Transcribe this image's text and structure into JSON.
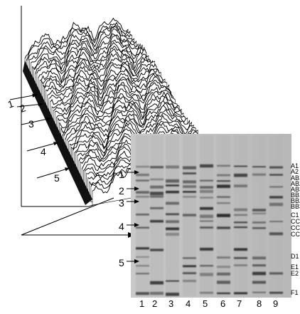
{
  "surface_labels": [
    "1",
    "2",
    "3",
    "4",
    "5"
  ],
  "marker_labels": [
    "1",
    "2",
    "3",
    "4",
    "5"
  ],
  "lane_labels": [
    "1",
    "2",
    "3",
    "4",
    "5",
    "6",
    "7",
    "8",
    "9"
  ],
  "band_labels": [
    "A1",
    "A2",
    "AB1",
    "AB2",
    "AB3",
    "BB1",
    "BB2",
    "BB3",
    "C1",
    "CC1",
    "CC2",
    "CC3",
    "D1",
    "E1",
    "E2",
    "F1"
  ],
  "colors": {
    "gel_background": "#bdbdbd",
    "surface": "#ffffff",
    "axis": "#000000"
  }
}
